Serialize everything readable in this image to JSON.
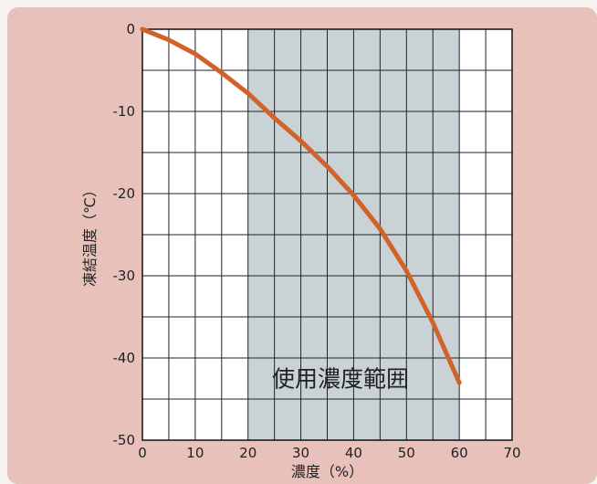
{
  "chart_data": {
    "type": "line",
    "title": "",
    "xlabel": "濃度（%）",
    "ylabel": "凍結温度（℃）",
    "xlim": [
      0,
      70
    ],
    "ylim": [
      -50,
      0
    ],
    "x_ticks": [
      0,
      10,
      20,
      30,
      40,
      50,
      60,
      70
    ],
    "y_ticks": [
      0,
      -10,
      -20,
      -30,
      -40,
      -50
    ],
    "x_tick_labels": [
      "0",
      "10",
      "20",
      "30",
      "40",
      "50",
      "60",
      "70"
    ],
    "y_tick_labels": [
      "0",
      "-10",
      "-20",
      "-30",
      "-40",
      "-50"
    ],
    "grid": true,
    "x_minor_step": 5,
    "y_minor_step": 5,
    "series": [
      {
        "name": "",
        "color": "#d2622c",
        "x": [
          0,
          5,
          10,
          15,
          20,
          25,
          30,
          35,
          40,
          45,
          50,
          55,
          60
        ],
        "y": [
          0,
          -1.3,
          -3,
          -5.3,
          -7.8,
          -10.8,
          -13.6,
          -16.7,
          -20.2,
          -24.3,
          -29.4,
          -35.7,
          -43
        ]
      }
    ],
    "shaded_region": {
      "x_range": [
        20,
        60
      ],
      "label": "使用濃度範囲",
      "color": "#c9d3d6"
    }
  }
}
